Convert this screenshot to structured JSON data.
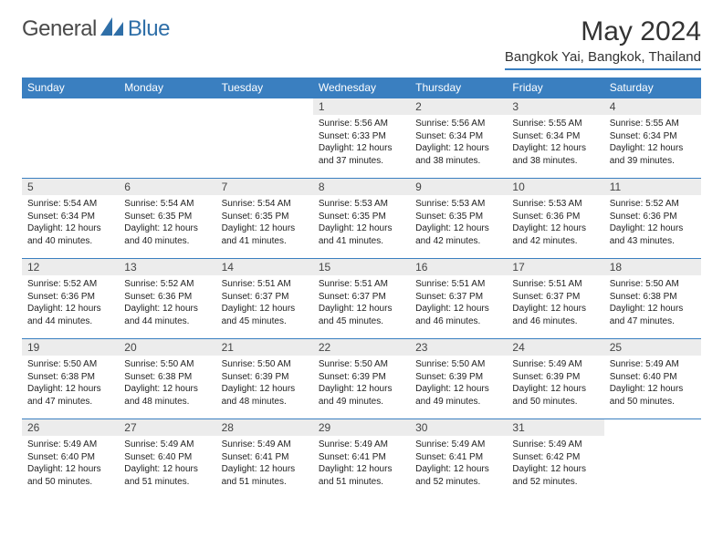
{
  "brand": {
    "name": "General",
    "accent": "Blue"
  },
  "title": "May 2024",
  "location": "Bangkok Yai, Bangkok, Thailand",
  "colors": {
    "header_bg": "#3a7fc0",
    "daynum_bg": "#ececec",
    "rule": "#3a7fc0",
    "text": "#222222"
  },
  "day_headers": [
    "Sunday",
    "Monday",
    "Tuesday",
    "Wednesday",
    "Thursday",
    "Friday",
    "Saturday"
  ],
  "weeks": [
    [
      {
        "n": "",
        "sr": "",
        "ss": "",
        "dl": ""
      },
      {
        "n": "",
        "sr": "",
        "ss": "",
        "dl": ""
      },
      {
        "n": "",
        "sr": "",
        "ss": "",
        "dl": ""
      },
      {
        "n": "1",
        "sr": "5:56 AM",
        "ss": "6:33 PM",
        "dl": "12 hours and 37 minutes."
      },
      {
        "n": "2",
        "sr": "5:56 AM",
        "ss": "6:34 PM",
        "dl": "12 hours and 38 minutes."
      },
      {
        "n": "3",
        "sr": "5:55 AM",
        "ss": "6:34 PM",
        "dl": "12 hours and 38 minutes."
      },
      {
        "n": "4",
        "sr": "5:55 AM",
        "ss": "6:34 PM",
        "dl": "12 hours and 39 minutes."
      }
    ],
    [
      {
        "n": "5",
        "sr": "5:54 AM",
        "ss": "6:34 PM",
        "dl": "12 hours and 40 minutes."
      },
      {
        "n": "6",
        "sr": "5:54 AM",
        "ss": "6:35 PM",
        "dl": "12 hours and 40 minutes."
      },
      {
        "n": "7",
        "sr": "5:54 AM",
        "ss": "6:35 PM",
        "dl": "12 hours and 41 minutes."
      },
      {
        "n": "8",
        "sr": "5:53 AM",
        "ss": "6:35 PM",
        "dl": "12 hours and 41 minutes."
      },
      {
        "n": "9",
        "sr": "5:53 AM",
        "ss": "6:35 PM",
        "dl": "12 hours and 42 minutes."
      },
      {
        "n": "10",
        "sr": "5:53 AM",
        "ss": "6:36 PM",
        "dl": "12 hours and 42 minutes."
      },
      {
        "n": "11",
        "sr": "5:52 AM",
        "ss": "6:36 PM",
        "dl": "12 hours and 43 minutes."
      }
    ],
    [
      {
        "n": "12",
        "sr": "5:52 AM",
        "ss": "6:36 PM",
        "dl": "12 hours and 44 minutes."
      },
      {
        "n": "13",
        "sr": "5:52 AM",
        "ss": "6:36 PM",
        "dl": "12 hours and 44 minutes."
      },
      {
        "n": "14",
        "sr": "5:51 AM",
        "ss": "6:37 PM",
        "dl": "12 hours and 45 minutes."
      },
      {
        "n": "15",
        "sr": "5:51 AM",
        "ss": "6:37 PM",
        "dl": "12 hours and 45 minutes."
      },
      {
        "n": "16",
        "sr": "5:51 AM",
        "ss": "6:37 PM",
        "dl": "12 hours and 46 minutes."
      },
      {
        "n": "17",
        "sr": "5:51 AM",
        "ss": "6:37 PM",
        "dl": "12 hours and 46 minutes."
      },
      {
        "n": "18",
        "sr": "5:50 AM",
        "ss": "6:38 PM",
        "dl": "12 hours and 47 minutes."
      }
    ],
    [
      {
        "n": "19",
        "sr": "5:50 AM",
        "ss": "6:38 PM",
        "dl": "12 hours and 47 minutes."
      },
      {
        "n": "20",
        "sr": "5:50 AM",
        "ss": "6:38 PM",
        "dl": "12 hours and 48 minutes."
      },
      {
        "n": "21",
        "sr": "5:50 AM",
        "ss": "6:39 PM",
        "dl": "12 hours and 48 minutes."
      },
      {
        "n": "22",
        "sr": "5:50 AM",
        "ss": "6:39 PM",
        "dl": "12 hours and 49 minutes."
      },
      {
        "n": "23",
        "sr": "5:50 AM",
        "ss": "6:39 PM",
        "dl": "12 hours and 49 minutes."
      },
      {
        "n": "24",
        "sr": "5:49 AM",
        "ss": "6:39 PM",
        "dl": "12 hours and 50 minutes."
      },
      {
        "n": "25",
        "sr": "5:49 AM",
        "ss": "6:40 PM",
        "dl": "12 hours and 50 minutes."
      }
    ],
    [
      {
        "n": "26",
        "sr": "5:49 AM",
        "ss": "6:40 PM",
        "dl": "12 hours and 50 minutes."
      },
      {
        "n": "27",
        "sr": "5:49 AM",
        "ss": "6:40 PM",
        "dl": "12 hours and 51 minutes."
      },
      {
        "n": "28",
        "sr": "5:49 AM",
        "ss": "6:41 PM",
        "dl": "12 hours and 51 minutes."
      },
      {
        "n": "29",
        "sr": "5:49 AM",
        "ss": "6:41 PM",
        "dl": "12 hours and 51 minutes."
      },
      {
        "n": "30",
        "sr": "5:49 AM",
        "ss": "6:41 PM",
        "dl": "12 hours and 52 minutes."
      },
      {
        "n": "31",
        "sr": "5:49 AM",
        "ss": "6:42 PM",
        "dl": "12 hours and 52 minutes."
      },
      {
        "n": "",
        "sr": "",
        "ss": "",
        "dl": ""
      }
    ]
  ],
  "labels": {
    "sunrise": "Sunrise:",
    "sunset": "Sunset:",
    "daylight": "Daylight:"
  }
}
